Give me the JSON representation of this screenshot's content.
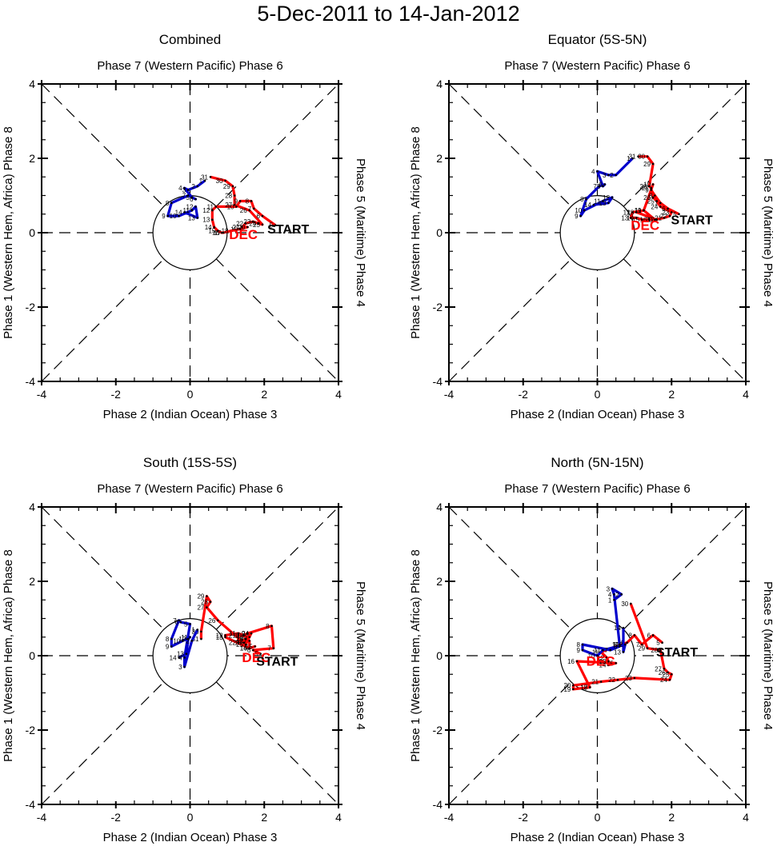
{
  "title": "5-Dec-2011 to 14-Jan-2012",
  "colors": {
    "dec": "#ff0000",
    "jan": "#0000cc",
    "axis": "#000000"
  },
  "chart_data": [
    {
      "type": "line",
      "title": "Combined",
      "top_label": "Phase 7 (Western Pacific) Phase 6",
      "bottom_label": "Phase 2 (Indian Ocean) Phase 3",
      "left_label": "Phase 1 (Western Hem, Africa) Phase 8",
      "right_label": "Phase 5 (Maritime) Phase 4",
      "xlim": [
        -4,
        4
      ],
      "ylim": [
        -4,
        4
      ],
      "xticks": [
        "-4",
        "-2",
        "0",
        "2",
        "4"
      ],
      "yticks": [
        "-4",
        "-2",
        "0",
        "2",
        "4"
      ],
      "start_label": "START",
      "start": [
        2.3,
        0.15
      ],
      "month_label": "DEC",
      "month_pos": [
        1.05,
        0.0
      ],
      "series": [
        {
          "name": "December",
          "color": "red",
          "days": [
            5,
            6,
            7,
            8,
            9,
            10,
            11,
            12,
            13,
            14,
            15,
            16,
            17,
            18,
            19,
            20,
            21,
            22,
            23,
            24,
            25,
            26,
            27,
            28,
            29,
            30,
            31
          ],
          "x": [
            2.3,
            1.95,
            1.72,
            1.65,
            1.35,
            1.25,
            0.7,
            0.6,
            0.6,
            0.65,
            0.75,
            0.85,
            0.9,
            1.1,
            1.35,
            1.55,
            1.4,
            1.5,
            1.7,
            1.85,
            1.95,
            1.6,
            1.2,
            1.2,
            1.15,
            0.95,
            0.55
          ],
          "y": [
            0.2,
            0.45,
            0.65,
            0.85,
            0.85,
            0.7,
            0.7,
            0.6,
            0.35,
            0.15,
            0.05,
            0.0,
            0.0,
            0.05,
            0.1,
            0.15,
            0.15,
            0.25,
            0.3,
            0.25,
            0.22,
            0.6,
            0.75,
            1.0,
            1.25,
            1.4,
            1.5
          ]
        },
        {
          "name": "January",
          "color": "blue",
          "days": [
            1,
            2,
            3,
            4,
            5,
            6,
            7,
            8,
            9,
            10,
            11,
            12,
            13,
            14
          ],
          "x": [
            0.4,
            0.2,
            -0.05,
            -0.15,
            0.05,
            0.15,
            -0.05,
            -0.5,
            -0.6,
            -0.3,
            0.05,
            0.15,
            0.2,
            -0.15
          ],
          "y": [
            1.4,
            1.25,
            1.15,
            1.2,
            0.95,
            0.9,
            1.0,
            0.8,
            0.45,
            0.45,
            0.6,
            0.7,
            0.4,
            0.55
          ]
        }
      ]
    },
    {
      "type": "line",
      "title": "Equator (5S-5N)",
      "top_label": "Phase 7 (Western Pacific) Phase 6",
      "bottom_label": "Phase 2 (Indian Ocean) Phase 3",
      "left_label": "Phase 1 (Western Hem, Africa) Phase 8",
      "right_label": "Phase 5 (Maritime) Phase 4",
      "xlim": [
        -4,
        4
      ],
      "ylim": [
        -4,
        4
      ],
      "xticks": [
        "-4",
        "-2",
        "0",
        "2",
        "4"
      ],
      "yticks": [
        "-4",
        "-2",
        "0",
        "2",
        "4"
      ],
      "start_label": "START",
      "start": [
        2.2,
        0.4
      ],
      "month_label": "DEC",
      "month_pos": [
        0.9,
        0.25
      ],
      "series": [
        {
          "name": "December",
          "color": "red",
          "days": [
            5,
            6,
            7,
            8,
            9,
            10,
            11,
            12,
            13,
            14,
            15,
            16,
            17,
            18,
            19,
            20,
            21,
            22,
            23,
            24,
            25,
            26,
            27,
            28,
            29,
            30,
            31
          ],
          "x": [
            2.2,
            1.9,
            1.7,
            1.55,
            1.45,
            1.5,
            1.25,
            0.95,
            0.9,
            1.05,
            1.2,
            1.4,
            1.6,
            1.05,
            1.25,
            1.55,
            1.8,
            1.95,
            2.0,
            1.7,
            1.6,
            1.5,
            1.45,
            1.4,
            1.5,
            1.35,
            1.1
          ],
          "y": [
            0.5,
            0.65,
            0.8,
            1.0,
            1.15,
            1.3,
            0.6,
            0.55,
            0.4,
            0.4,
            0.35,
            0.35,
            0.35,
            0.55,
            0.6,
            0.35,
            0.4,
            0.45,
            0.55,
            0.7,
            0.85,
            0.95,
            1.2,
            1.25,
            1.85,
            2.05,
            2.05
          ]
        },
        {
          "name": "January",
          "color": "blue",
          "days": [
            1,
            2,
            3,
            4,
            5,
            6,
            7,
            8,
            9,
            10,
            11,
            12,
            13,
            14
          ],
          "x": [
            0.95,
            0.5,
            0.3,
            0.0,
            0.15,
            0.2,
            0.05,
            -0.3,
            -0.45,
            -0.35,
            0.15,
            0.4,
            0.3,
            -0.1
          ],
          "y": [
            2.0,
            1.55,
            1.55,
            1.65,
            1.25,
            1.3,
            1.25,
            0.9,
            0.45,
            0.6,
            0.85,
            0.95,
            0.8,
            0.75
          ]
        }
      ]
    },
    {
      "type": "line",
      "title": "South (15S-5S)",
      "top_label": "Phase 7 (Western Pacific) Phase 6",
      "bottom_label": "Phase 2 (Indian Ocean) Phase 3",
      "left_label": "Phase 1 (Western Hem, Africa) Phase 8",
      "right_label": "Phase 5 (Maritime) Phase 4",
      "xlim": [
        -4,
        4
      ],
      "ylim": [
        -4,
        4
      ],
      "xticks": [
        "-4",
        "-2",
        "0",
        "2",
        "4"
      ],
      "yticks": [
        "-4",
        "-2",
        "0",
        "2",
        "4"
      ],
      "start_label": "START",
      "start": [
        2.0,
        -0.1
      ],
      "month_label": "DEC",
      "month_pos": [
        1.4,
        0.0
      ],
      "series": [
        {
          "name": "December",
          "color": "red",
          "days": [
            5,
            6,
            7,
            8,
            9,
            10,
            11,
            12,
            13,
            14,
            15,
            16,
            17,
            18,
            19,
            20,
            21,
            22,
            23,
            24,
            25,
            26,
            27,
            28,
            29,
            30,
            31
          ],
          "x": [
            1.9,
            1.7,
            2.25,
            2.2,
            1.55,
            1.45,
            1.3,
            0.95,
            0.95,
            1.6,
            1.75,
            1.6,
            1.6,
            1.45,
            1.5,
            1.6,
            1.3,
            1.3,
            1.5,
            1.65,
            1.5,
            0.75,
            0.45,
            0.55,
            0.45,
            0.3,
            0.3
          ],
          "y": [
            0.05,
            0.15,
            0.2,
            0.8,
            0.6,
            0.55,
            0.6,
            0.55,
            0.5,
            0.2,
            0.25,
            0.2,
            0.4,
            0.35,
            0.45,
            0.5,
            0.55,
            0.35,
            0.45,
            0.6,
            0.3,
            0.95,
            1.3,
            1.45,
            1.6,
            0.65,
            0.45
          ]
        },
        {
          "name": "January",
          "color": "blue",
          "days": [
            1,
            2,
            3,
            4,
            5,
            6,
            7,
            8,
            9,
            10,
            11,
            12,
            13,
            14
          ],
          "x": [
            0.2,
            0.05,
            -0.15,
            -0.15,
            0.0,
            -0.25,
            -0.3,
            -0.5,
            -0.5,
            -0.2,
            0.0,
            -0.05,
            -0.1,
            -0.3
          ],
          "y": [
            0.7,
            0.4,
            -0.3,
            -0.05,
            0.85,
            0.9,
            0.95,
            0.45,
            0.25,
            0.4,
            0.5,
            0.45,
            0.05,
            -0.05
          ]
        }
      ]
    },
    {
      "type": "line",
      "title": "North (5N-15N)",
      "top_label": "Phase 7 (Western Pacific) Phase 6",
      "bottom_label": "Phase 2 (Indian Ocean) Phase 3",
      "left_label": "Phase 1 (Western Hem, Africa) Phase 8",
      "right_label": "Phase 5 (Maritime) Phase 4",
      "xlim": [
        -4,
        4
      ],
      "ylim": [
        -4,
        4
      ],
      "xticks": [
        "-4",
        "-2",
        "0",
        "2",
        "4"
      ],
      "yticks": [
        "-4",
        "-2",
        "0",
        "2",
        "4"
      ],
      "start_label": "START",
      "start": [
        1.8,
        0.15
      ],
      "month_label": "DEC",
      "month_pos": [
        -0.3,
        -0.1
      ],
      "series": [
        {
          "name": "December",
          "color": "red",
          "days": [
            5,
            6,
            7,
            8,
            9,
            10,
            11,
            12,
            13,
            14,
            15,
            16,
            17,
            18,
            19,
            20,
            21,
            22,
            23,
            24,
            25,
            26,
            27,
            28,
            29,
            30
          ],
          "x": [
            1.75,
            1.5,
            1.2,
            1.0,
            0.8,
            0.65,
            0.1,
            0.25,
            0.3,
            0.3,
            0.5,
            -0.55,
            -0.2,
            -0.2,
            -0.65,
            -0.65,
            0.1,
            0.55,
            1.0,
            1.95,
            2.0,
            1.9,
            1.8,
            1.7,
            1.35,
            0.9
          ],
          "y": [
            0.35,
            0.55,
            0.3,
            0.55,
            0.35,
            0.3,
            0.1,
            -0.05,
            -0.15,
            -0.25,
            -0.2,
            -0.15,
            -0.85,
            -0.85,
            -0.9,
            -0.8,
            -0.7,
            -0.65,
            -0.6,
            -0.65,
            -0.5,
            -0.45,
            -0.35,
            0.15,
            0.2,
            1.4
          ]
        },
        {
          "name": "January",
          "color": "blue",
          "days": [
            1,
            2,
            3,
            4,
            5,
            6,
            7,
            8,
            9,
            10,
            11,
            12,
            13,
            14
          ],
          "x": [
            0.45,
            0.65,
            0.4,
            0.45,
            0.6,
            0.6,
            0.35,
            -0.4,
            -0.4,
            0.0,
            0.15,
            0.75,
            0.7,
            0.7
          ],
          "y": [
            1.5,
            1.65,
            1.8,
            1.65,
            0.3,
            0.25,
            0.15,
            0.3,
            0.15,
            0.0,
            0.15,
            0.3,
            0.1,
            0.75
          ]
        }
      ]
    }
  ]
}
